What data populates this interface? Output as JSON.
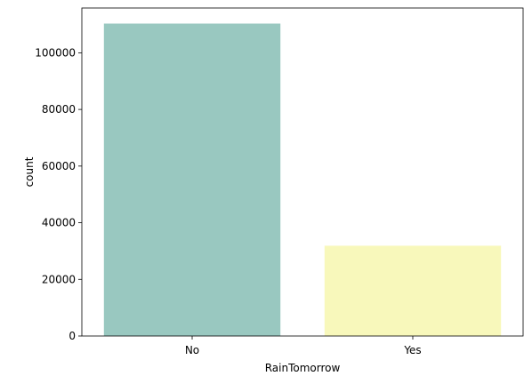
{
  "chart_data": {
    "type": "bar",
    "categories": [
      "No",
      "Yes"
    ],
    "values": [
      110316,
      31877
    ],
    "colors": [
      "#99c8c0",
      "#f8f8bb"
    ],
    "xlabel": "RainTomorrow",
    "ylabel": "count",
    "ylim": [
      0,
      115817
    ],
    "yticks": [
      0,
      20000,
      40000,
      60000,
      80000,
      100000
    ],
    "ytick_labels": [
      "0",
      "20000",
      "40000",
      "60000",
      "80000",
      "100000"
    ],
    "grid": false,
    "legend": "none"
  }
}
